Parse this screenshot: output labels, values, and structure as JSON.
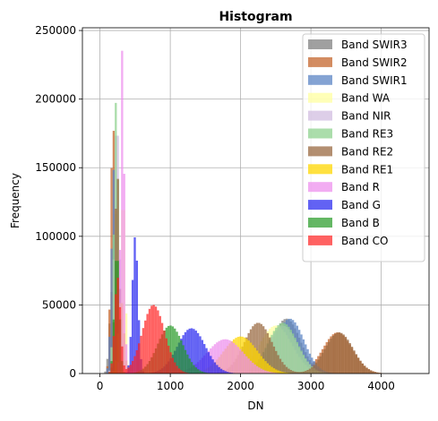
{
  "chart_data": {
    "type": "histogram",
    "title": "Histogram",
    "xlabel": "DN",
    "ylabel": "Frequency",
    "xlim": [
      -250,
      4680
    ],
    "ylim": [
      0,
      252000
    ],
    "xticks": [
      0,
      1000,
      2000,
      3000,
      4000
    ],
    "yticks": [
      0,
      50000,
      100000,
      150000,
      200000,
      250000
    ],
    "xtick_labels": [
      "0",
      "1000",
      "2000",
      "3000",
      "4000"
    ],
    "ytick_labels": [
      "0",
      "50000",
      "100000",
      "150000",
      "200000",
      "250000"
    ],
    "grid": true,
    "bin_width": 30,
    "legend_position": "upper right",
    "series": [
      {
        "name": "Band SWIR3",
        "color": "#808080",
        "opacity": 0.75,
        "peaks": [
          {
            "x": 170,
            "y": 60000,
            "sigma": 35
          },
          {
            "x": 2650,
            "y": 40000,
            "sigma": 200
          }
        ]
      },
      {
        "name": "Band SWIR2",
        "color": "#c4662c",
        "opacity": 0.75,
        "peaks": [
          {
            "x": 185,
            "y": 187000,
            "sigma": 30
          },
          {
            "x": 3380,
            "y": 30000,
            "sigma": 210
          }
        ]
      },
      {
        "name": "Band SWIR1",
        "color": "#5b84c4",
        "opacity": 0.75,
        "peaks": [
          {
            "x": 200,
            "y": 150000,
            "sigma": 35
          },
          {
            "x": 2700,
            "y": 40000,
            "sigma": 200
          }
        ]
      },
      {
        "name": "Band WA",
        "color": "#ffffa0",
        "opacity": 0.75,
        "peaks": [
          {
            "x": 330,
            "y": 135000,
            "sigma": 30
          },
          {
            "x": 2500,
            "y": 35000,
            "sigma": 230
          }
        ]
      },
      {
        "name": "Band NIR",
        "color": "#d2bde0",
        "opacity": 0.75,
        "peaks": [
          {
            "x": 240,
            "y": 190000,
            "sigma": 35
          },
          {
            "x": 2600,
            "y": 35000,
            "sigma": 210
          }
        ]
      },
      {
        "name": "Band RE3",
        "color": "#8fd18f",
        "opacity": 0.75,
        "peaks": [
          {
            "x": 230,
            "y": 200000,
            "sigma": 30
          },
          {
            "x": 2600,
            "y": 37000,
            "sigma": 210
          }
        ]
      },
      {
        "name": "Band RE2",
        "color": "#9a6a42",
        "opacity": 0.75,
        "peaks": [
          {
            "x": 245,
            "y": 150000,
            "sigma": 30
          },
          {
            "x": 2250,
            "y": 37000,
            "sigma": 200
          },
          {
            "x": 3400,
            "y": 30000,
            "sigma": 200
          }
        ]
      },
      {
        "name": "Band RE1",
        "color": "#ffd700",
        "opacity": 0.75,
        "peaks": [
          {
            "x": 300,
            "y": 55000,
            "sigma": 40
          },
          {
            "x": 2000,
            "y": 27000,
            "sigma": 240
          }
        ]
      },
      {
        "name": "Band R",
        "color": "#ee90ee",
        "opacity": 0.75,
        "peaks": [
          {
            "x": 320,
            "y": 240000,
            "sigma": 25
          },
          {
            "x": 1780,
            "y": 25000,
            "sigma": 260
          }
        ]
      },
      {
        "name": "Band G",
        "color": "#2020f0",
        "opacity": 0.7,
        "peaks": [
          {
            "x": 500,
            "y": 100000,
            "sigma": 40
          },
          {
            "x": 1300,
            "y": 33000,
            "sigma": 200
          }
        ]
      },
      {
        "name": "Band B",
        "color": "#229922",
        "opacity": 0.7,
        "peaks": [
          {
            "x": 240,
            "y": 90000,
            "sigma": 35
          },
          {
            "x": 1000,
            "y": 35000,
            "sigma": 180
          }
        ]
      },
      {
        "name": "Band CO",
        "color": "#ff2020",
        "opacity": 0.7,
        "peaks": [
          {
            "x": 250,
            "y": 70000,
            "sigma": 40
          },
          {
            "x": 760,
            "y": 50000,
            "sigma": 160
          }
        ]
      }
    ]
  }
}
